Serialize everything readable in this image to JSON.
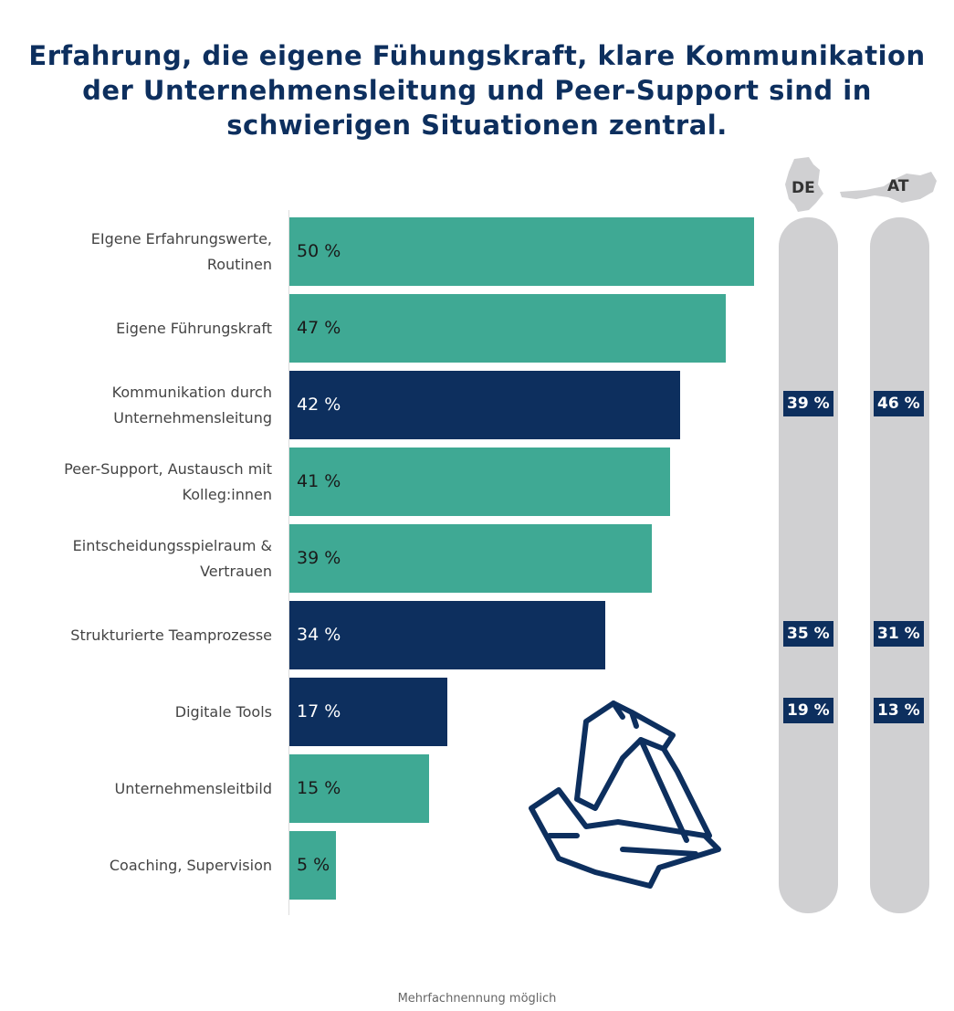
{
  "chart_data": {
    "type": "bar",
    "title": "Erfahrung, die eigene Fühungskraft, klare Kommunikation der Unternehmensleitung und Peer-Support sind in schwierigen Situationen zentral.",
    "categories": [
      "EIgene Erfahrungswerte, Routinen",
      "Eigene Führungskraft",
      "Kommunikation durch Unternehmensleitung",
      "Peer-Support, Austausch mit Kolleg:innen",
      "Eintscheidungsspielraum & Vertrauen",
      "Strukturierte Teamprozesse",
      "Digitale Tools",
      "Unternehmensleitbild",
      "Coaching, Supervision"
    ],
    "values": [
      50,
      47,
      42,
      41,
      39,
      34,
      17,
      15,
      5
    ],
    "value_labels": [
      "50 %",
      "47 %",
      "42 %",
      "41 %",
      "39 %",
      "34 %",
      "17 %",
      "15 %",
      "5 %"
    ],
    "highlighted": [
      false,
      false,
      true,
      false,
      false,
      true,
      true,
      false,
      false
    ],
    "xlim": [
      0,
      50
    ],
    "colors": {
      "default": "#3fa994",
      "highlighted": "#0d2f5e",
      "pill": "#d0d0d2"
    },
    "countries": [
      {
        "name": "DE",
        "values": {
          "2": "39 %",
          "5": "35 %",
          "6": "19 %"
        }
      },
      {
        "name": "AT",
        "values": {
          "2": "46 %",
          "5": "31 %",
          "6": "13 %"
        }
      }
    ],
    "footnote": "Mehrfachnennung möglich"
  },
  "icons": [
    "germany-map-icon",
    "austria-map-icon",
    "hands-triangle-icon"
  ]
}
